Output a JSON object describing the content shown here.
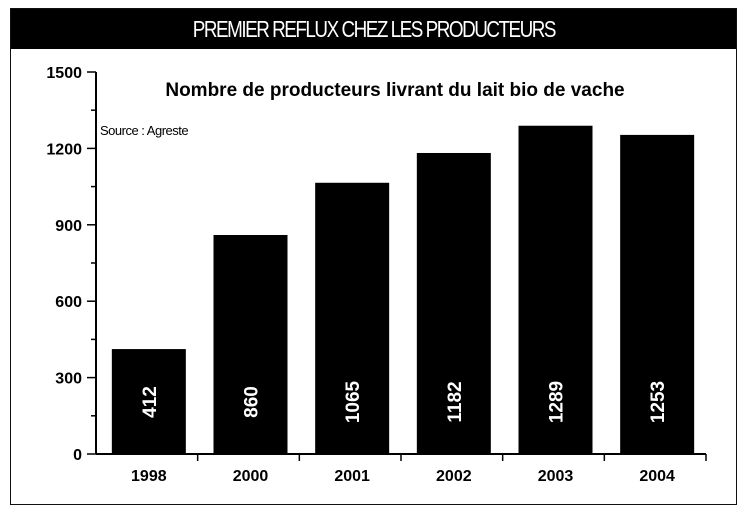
{
  "banner_title": "PREMIER REFLUX CHEZ LES PRODUCTEURS",
  "chart_data": {
    "type": "bar",
    "title": "Nombre de producteurs livrant du lait bio de vache",
    "source": "Source : Agreste",
    "categories": [
      "1998",
      "2000",
      "2001",
      "2002",
      "2003",
      "2004"
    ],
    "values": [
      412,
      860,
      1065,
      1182,
      1289,
      1253
    ],
    "value_labels": [
      "412",
      "860",
      "1065",
      "1182",
      "1289",
      "1253"
    ],
    "ylim": [
      0,
      1500
    ],
    "yticks": [
      "0",
      "300",
      "600",
      "900",
      "1200",
      "1500"
    ],
    "bar_color": "#000000",
    "label_color": "#ffffff",
    "grid": false,
    "xlabel": "",
    "ylabel": ""
  }
}
